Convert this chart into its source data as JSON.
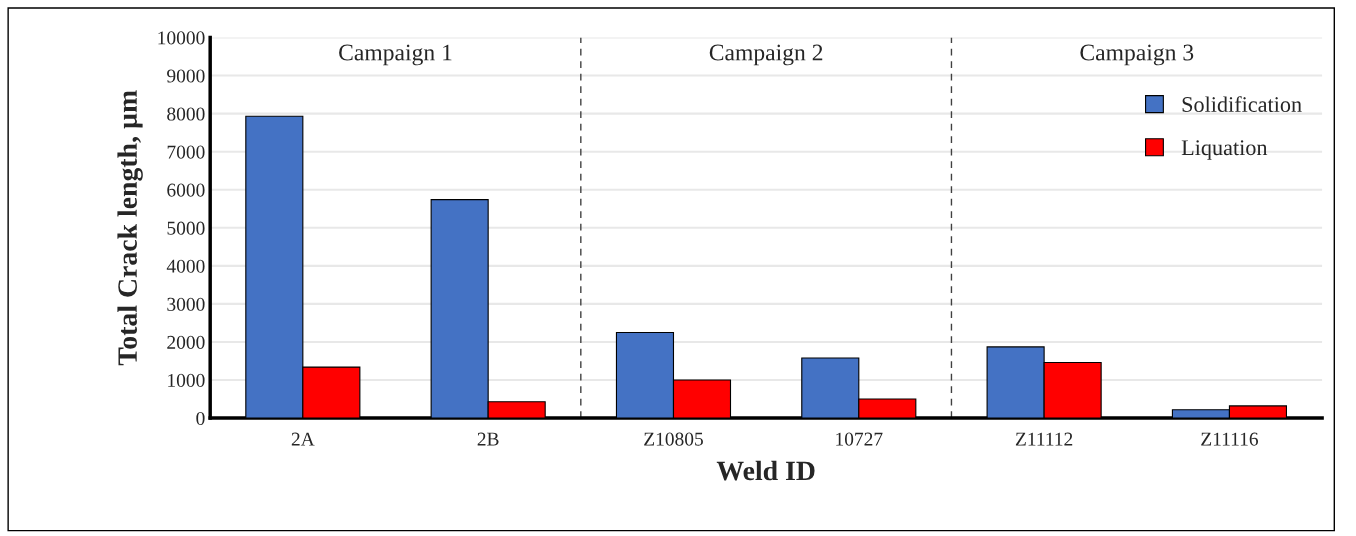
{
  "chart_data": {
    "type": "bar",
    "xlabel": "Weld ID",
    "ylabel": "Total Crack length, µm",
    "categories": [
      "2A",
      "2B",
      "Z10805",
      "10727",
      "Z11112",
      "Z11116"
    ],
    "series": [
      {
        "name": "Solidification",
        "color": "#4472c4",
        "values": [
          7930,
          5740,
          2250,
          1580,
          1870,
          220
        ]
      },
      {
        "name": "Liquation",
        "color": "#ff0000",
        "values": [
          1340,
          430,
          1000,
          500,
          1460,
          320
        ]
      }
    ],
    "ylim": [
      0,
      10000
    ],
    "yticks": [
      0,
      1000,
      2000,
      3000,
      4000,
      5000,
      6000,
      7000,
      8000,
      9000,
      10000
    ],
    "grid": "y",
    "legend": "top right",
    "annotations": [
      "Campaign 1",
      "Campaign 2",
      "Campaign 3"
    ]
  }
}
